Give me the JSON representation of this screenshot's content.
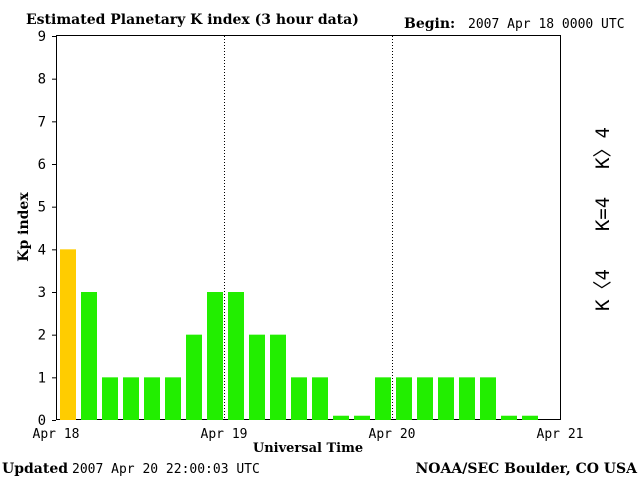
{
  "header": {
    "title": "Estimated Planetary K index (3 hour data)",
    "begin_label": "Begin:",
    "begin_value": "2007 Apr 18 0000 UTC"
  },
  "footer": {
    "updated_label": "Updated",
    "updated_value": "2007 Apr 20 22:00:03 UTC",
    "source": "NOAA/SEC Boulder, CO USA"
  },
  "legend": {
    "greater": "K〉4",
    "equal": "K=4",
    "less": "K〈4"
  },
  "colors": {
    "green": "#22ee00",
    "yellow": "#ffcc00",
    "red": "#ff2200",
    "green_label": "#22dd00",
    "yellow_label": "#ffcc00",
    "red_label": "#ff2200"
  },
  "chart_data": {
    "type": "bar",
    "title": "Estimated Planetary K index (3 hour data)",
    "xlabel": "Universal Time",
    "ylabel": "Kp index",
    "ylim": [
      0,
      9
    ],
    "yticks": [
      "0",
      "1",
      "2",
      "3",
      "4",
      "5",
      "6",
      "7",
      "8",
      "9"
    ],
    "xticks": [
      "Apr 18",
      "Apr 19",
      "Apr 20",
      "Apr 21"
    ],
    "bin_hours": 3,
    "values": [
      4,
      3,
      1,
      1,
      1,
      1,
      2,
      3,
      3,
      2,
      2,
      1,
      1,
      0.1,
      0.1,
      1,
      1,
      1,
      1,
      1,
      1,
      0.1,
      0.1
    ],
    "grid": false,
    "day_dividers": true
  }
}
